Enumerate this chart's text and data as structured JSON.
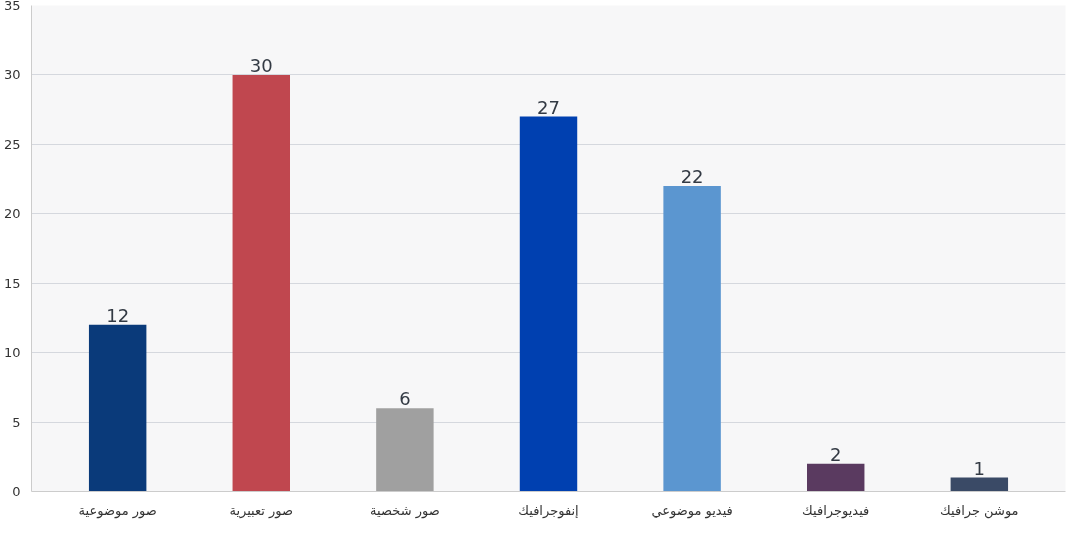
{
  "chart_data": {
    "type": "bar",
    "categories": [
      "صور موضوعية",
      "صور تعبيرية",
      "صور شخصية",
      "إنفوجرافيك",
      "فيديو موضوعي",
      "فيديوجرافيك",
      "موشن جرافيك"
    ],
    "values": [
      12,
      30,
      6,
      27,
      22,
      2,
      1
    ],
    "colors": [
      "#0a3a7a",
      "#c0474f",
      "#a0a0a0",
      "#0040b0",
      "#5b96d0",
      "#5a3a60",
      "#3a4a66"
    ],
    "ylim": [
      0,
      35
    ],
    "yticks": [
      0,
      5,
      10,
      15,
      20,
      25,
      30,
      35
    ],
    "grid": "y",
    "data_labels": true
  }
}
